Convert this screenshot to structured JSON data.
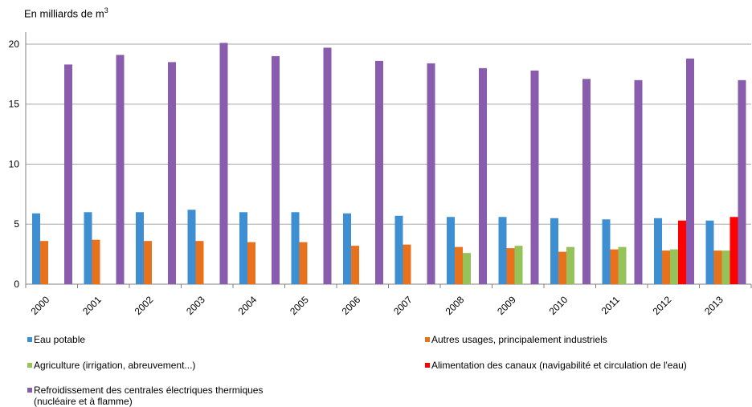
{
  "chart_data": {
    "type": "bar",
    "unit_label_prefix": "En milliards de m",
    "unit_label_sup": "3",
    "categories": [
      "2000",
      "2001",
      "2002",
      "2003",
      "2004",
      "2005",
      "2006",
      "2007",
      "2008",
      "2009",
      "2010",
      "2011",
      "2012",
      "2013"
    ],
    "series": [
      {
        "name": "Eau potable",
        "color": "#3d8fd1",
        "values": [
          5.9,
          6.0,
          6.0,
          6.2,
          6.0,
          6.0,
          5.9,
          5.7,
          5.6,
          5.6,
          5.5,
          5.4,
          5.5,
          5.3
        ]
      },
      {
        "name": "Autres usages, principalement industriels",
        "color": "#e8711d",
        "values": [
          3.6,
          3.7,
          3.6,
          3.6,
          3.5,
          3.5,
          3.2,
          3.3,
          3.1,
          3.0,
          2.7,
          2.9,
          2.8,
          2.8
        ]
      },
      {
        "name": "Agriculture (irrigation, abreuvement...)",
        "color": "#95c35a",
        "values": [
          null,
          null,
          null,
          null,
          null,
          null,
          null,
          null,
          2.6,
          3.2,
          3.1,
          3.1,
          2.9,
          2.8
        ]
      },
      {
        "name": "Alimentation des canaux (navigabilité et circulation de l'eau)",
        "color": "#ff0000",
        "values": [
          null,
          null,
          null,
          null,
          null,
          null,
          null,
          null,
          null,
          null,
          null,
          null,
          5.3,
          5.6
        ]
      },
      {
        "name": "Refroidissement des centrales électriques thermiques\n(nucléaire et à flamme)",
        "color": "#8a5cad",
        "values": [
          18.3,
          19.1,
          18.5,
          20.1,
          19.0,
          19.7,
          18.6,
          18.4,
          18.0,
          17.8,
          17.1,
          17.0,
          18.8,
          17.0
        ]
      }
    ],
    "ylim": [
      0,
      21
    ],
    "yticks": [
      0,
      5,
      10,
      15,
      20
    ],
    "grid": true,
    "legend_position": "bottom"
  }
}
